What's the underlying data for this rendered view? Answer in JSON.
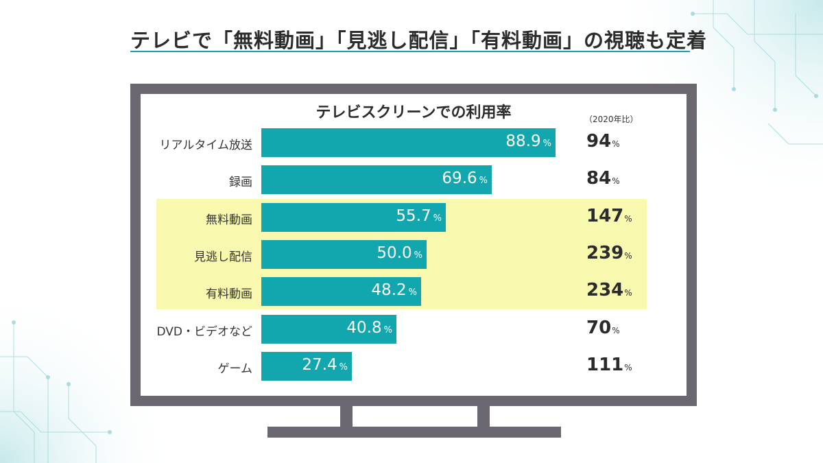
{
  "headline": "テレビで「無料動画」「見逃し配信」「有料動画」の視聴も定着",
  "chart_data": {
    "type": "bar",
    "orientation": "horizontal",
    "title": "テレビスクリーンでの利用率",
    "comparison_label": "（2020年比）",
    "unit": "%",
    "xlim": [
      0,
      100
    ],
    "categories": [
      "リアルタイム放送",
      "録画",
      "無料動画",
      "見逃し配信",
      "有料動画",
      "DVD・ビデオなど",
      "ゲーム"
    ],
    "values": [
      88.9,
      69.6,
      55.7,
      50.0,
      48.2,
      40.8,
      27.4
    ],
    "value_labels": [
      "88.9",
      "69.6",
      "55.7",
      "50.0",
      "48.2",
      "40.8",
      "27.4"
    ],
    "comparison_values": [
      "94",
      "84",
      "147",
      "239",
      "234",
      "70",
      "111"
    ],
    "highlighted": [
      false,
      false,
      true,
      true,
      true,
      false,
      false
    ]
  },
  "colors": {
    "bar": "#12a6ae",
    "highlight": "#f8f8ae",
    "tv_frame": "#6a6770",
    "accent_rule": "#17a2ad"
  }
}
